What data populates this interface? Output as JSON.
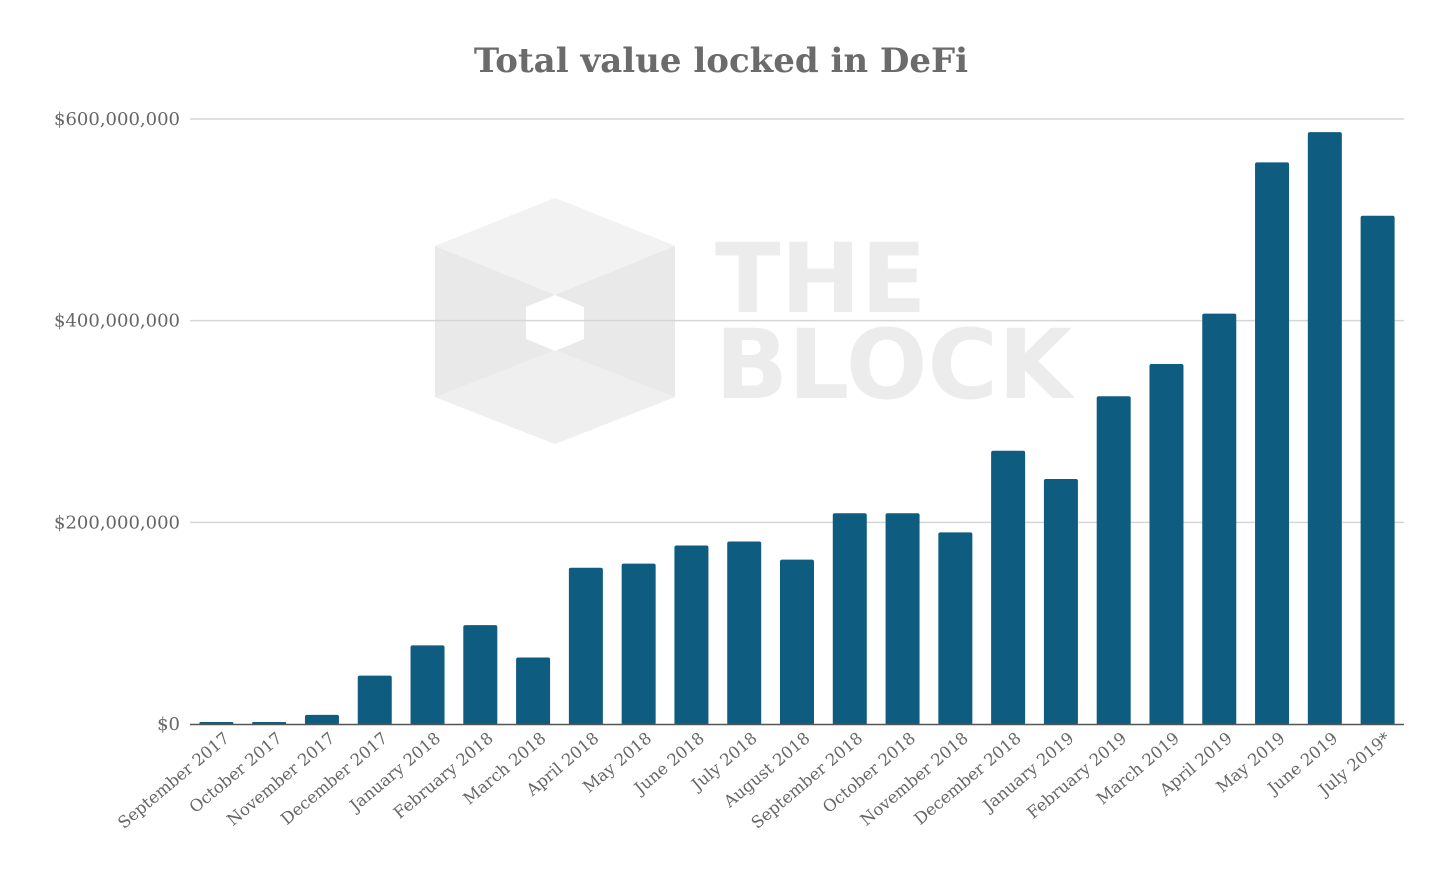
{
  "watermark": {
    "line1": "THE",
    "line2": "BLOCK"
  },
  "chart_data": {
    "type": "bar",
    "title": "Total value locked in DeFi",
    "xlabel": "",
    "ylabel": "",
    "ylim": [
      0,
      600000000
    ],
    "yticks": [
      0,
      200000000,
      400000000,
      600000000
    ],
    "ytick_labels": [
      "$0",
      "$200,000,000",
      "$400,000,000",
      "$600,000,000"
    ],
    "grid": true,
    "bar_color": "#0e5c80",
    "categories": [
      "September 2017",
      "October 2017",
      "November 2017",
      "December 2017",
      "January 2018",
      "February 2018",
      "March 2018",
      "April 2018",
      "May 2018",
      "June 2018",
      "July 2018",
      "August 2018",
      "September 2018",
      "October 2018",
      "November 2018",
      "December 2018",
      "January 2019",
      "February 2019",
      "March 2019",
      "April 2019",
      "May 2019",
      "June 2019",
      "July 2019*"
    ],
    "values": [
      2000000,
      2000000,
      9000000,
      48000000,
      78000000,
      98000000,
      66000000,
      155000000,
      159000000,
      177000000,
      181000000,
      163000000,
      209000000,
      209000000,
      190000000,
      271000000,
      243000000,
      325000000,
      357000000,
      407000000,
      557000000,
      587000000,
      504000000
    ]
  }
}
